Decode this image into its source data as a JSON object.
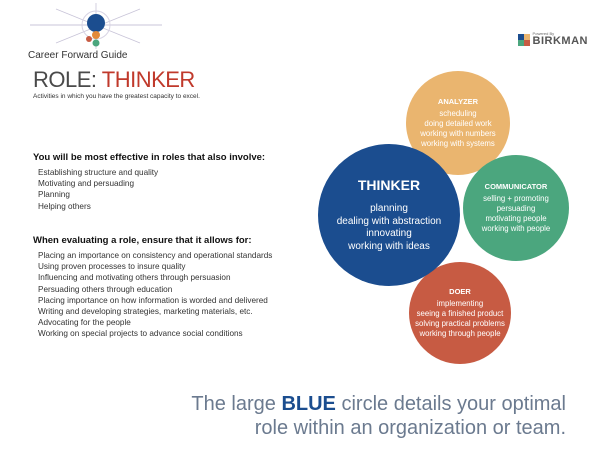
{
  "header": {
    "guide_title": "Career Forward Guide",
    "brand_powered_by": "Powered By",
    "brand_name": "BIRKMAN",
    "logo_colors": [
      "#1b4d8f",
      "#eab56f",
      "#4ba67e",
      "#c75b43"
    ]
  },
  "role": {
    "prefix": "ROLE:",
    "name": "THINKER",
    "subtitle": "Activities in which you have the greatest capacity to excel."
  },
  "effective": {
    "heading": "You will be most effective in roles that also involve:",
    "items": [
      "Establishing structure and quality",
      "Motivating and persuading",
      "Planning",
      "Helping others"
    ]
  },
  "evaluating": {
    "heading": "When evaluating a role, ensure that it allows for:",
    "items": [
      "Placing an importance on consistency and operational standards",
      "Using proven processes to insure quality",
      "Influencing and motivating others through persuasion",
      "Persuading others through education",
      "Placing importance on how information is worded and delivered",
      "Writing and developing strategies, marketing materials, etc.",
      "Advocating for the people",
      "Working on special projects to advance social conditions"
    ]
  },
  "circles": {
    "thinker": {
      "title": "THINKER",
      "color": "#1b4d8f",
      "items": [
        "planning",
        "dealing with abstraction",
        "innovating",
        "working with ideas"
      ]
    },
    "analyzer": {
      "title": "ANALYZER",
      "color": "#eab56f",
      "items": [
        "scheduling",
        "doing detailed work",
        "working with numbers",
        "working with systems"
      ]
    },
    "communicator": {
      "title": "COMMUNICATOR",
      "color": "#4ba67e",
      "items": [
        "selling + promoting",
        "persuading",
        "motivating people",
        "working with people"
      ]
    },
    "doer": {
      "title": "DOER",
      "color": "#c75b43",
      "items": [
        "implementing",
        "seeing a finished product",
        "solving practical problems",
        "working through people"
      ]
    }
  },
  "tagline": {
    "part1": "The large ",
    "highlight": "BLUE",
    "part2": " circle details your optimal",
    "line2": "role within an organization or team."
  }
}
